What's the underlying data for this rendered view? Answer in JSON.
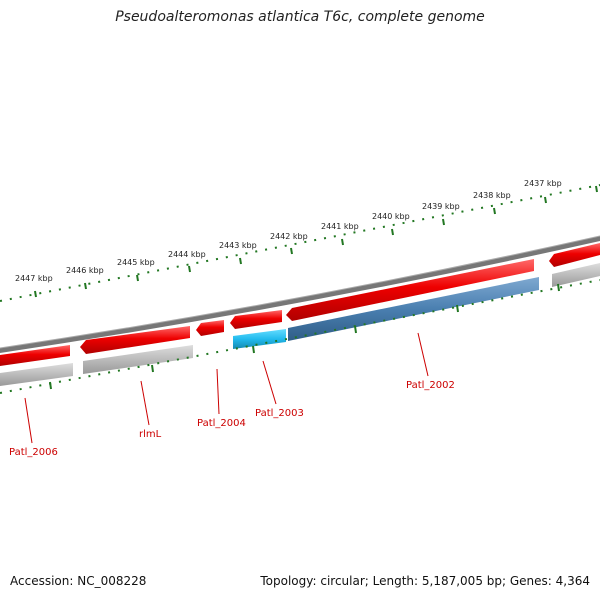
{
  "title": "Pseudoalteromonas atlantica T6c, complete genome",
  "accession_text": "Accession: NC_008228",
  "summary_text": "Topology: circular; Length: 5,187,005 bp; Genes: 4,364",
  "ticks": [
    "2447 kbp",
    "2446 kbp",
    "2445 kbp",
    "2444 kbp",
    "2443 kbp",
    "2442 kbp",
    "2441 kbp",
    "2440 kbp",
    "2439 kbp",
    "2438 kbp",
    "2437 kbp"
  ],
  "gene_labels": [
    "Patl_2006",
    "rlmL",
    "Patl_2004",
    "Patl_2003",
    "Patl_2002"
  ],
  "colors": {
    "forward_cds": "#ee0000",
    "reverse_cds": "#bbbbbb",
    "backbone": "#777777",
    "tick_marks": "#227722",
    "highlight_light": "#22bbee",
    "highlight_dark": "#4a7fb0",
    "label": "#cc0000"
  }
}
